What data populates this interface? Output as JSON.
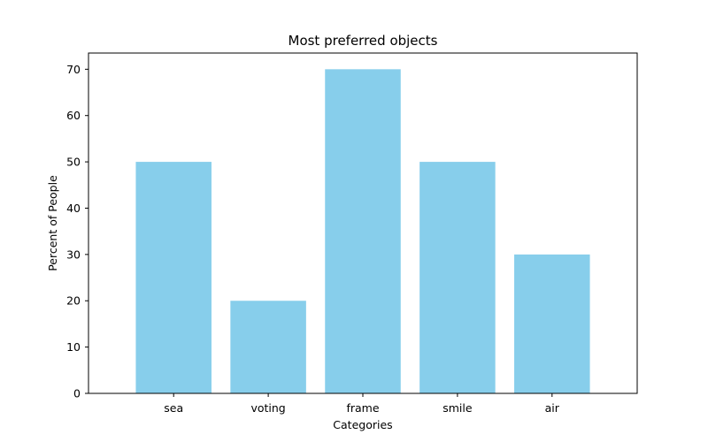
{
  "chart_data": {
    "type": "bar",
    "title": "Most preferred objects",
    "xlabel": "Categories",
    "ylabel": "Percent of People",
    "categories": [
      "sea",
      "voting",
      "frame",
      "smile",
      "air"
    ],
    "values": [
      50,
      20,
      70,
      50,
      30
    ],
    "ylim": [
      0,
      73.5
    ],
    "yticks": [
      0,
      10,
      20,
      30,
      40,
      50,
      60,
      70
    ],
    "bar_color": "#87CEEB",
    "grid": false,
    "legend": "none"
  }
}
